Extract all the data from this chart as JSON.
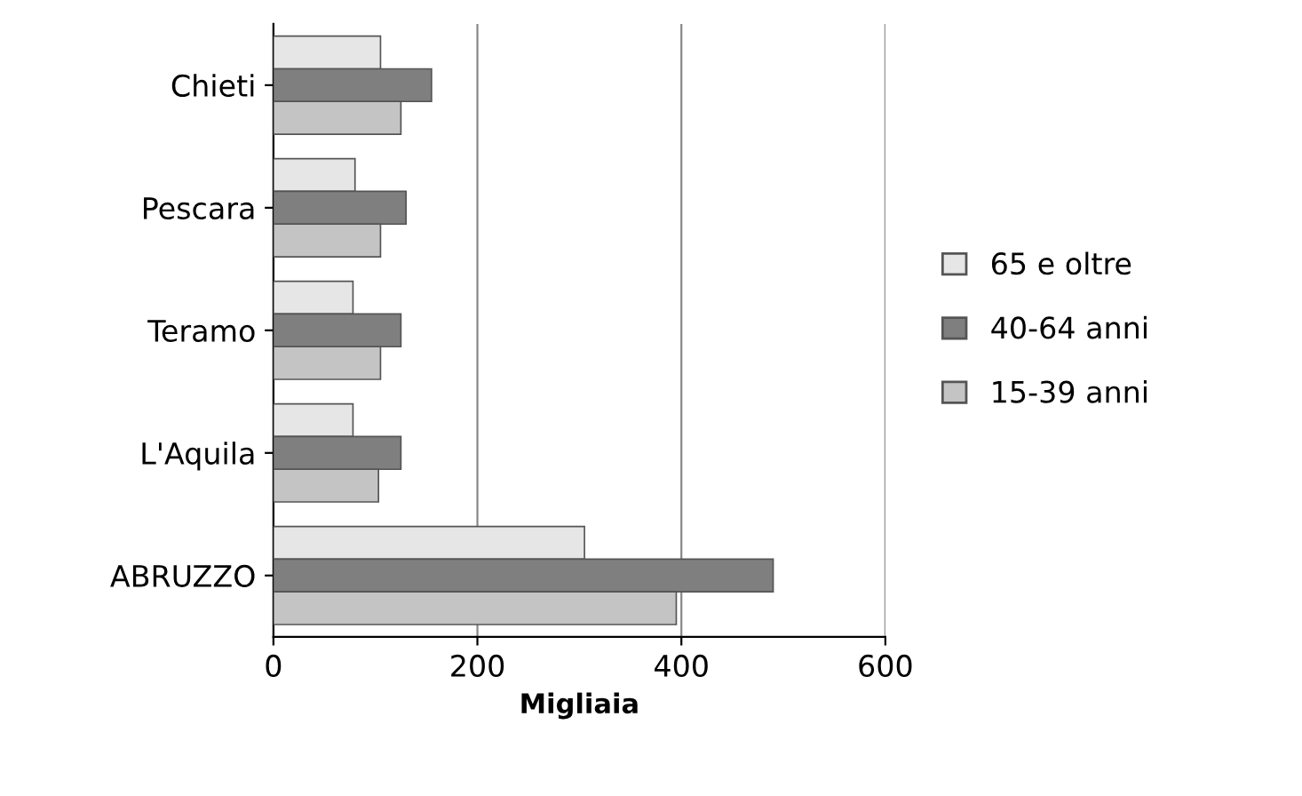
{
  "chart_data": {
    "type": "bar",
    "orientation": "horizontal",
    "xlabel": "Migliaia",
    "categories": [
      "Chieti",
      "Pescara",
      "Teramo",
      "L'Aquila",
      "ABRUZZO"
    ],
    "series": [
      {
        "name": "65 e oltre",
        "color": "#e6e6e6",
        "values": [
          105,
          80,
          78,
          78,
          305
        ]
      },
      {
        "name": "40-64 anni",
        "color": "#7f7f7f",
        "values": [
          155,
          130,
          125,
          125,
          490
        ]
      },
      {
        "name": "15-39 anni",
        "color": "#c4c4c4",
        "values": [
          125,
          105,
          105,
          103,
          395
        ]
      }
    ],
    "xlim": [
      0,
      600
    ],
    "xticks": [
      0,
      200,
      400,
      600
    ],
    "grid": "x",
    "legend": "right"
  }
}
